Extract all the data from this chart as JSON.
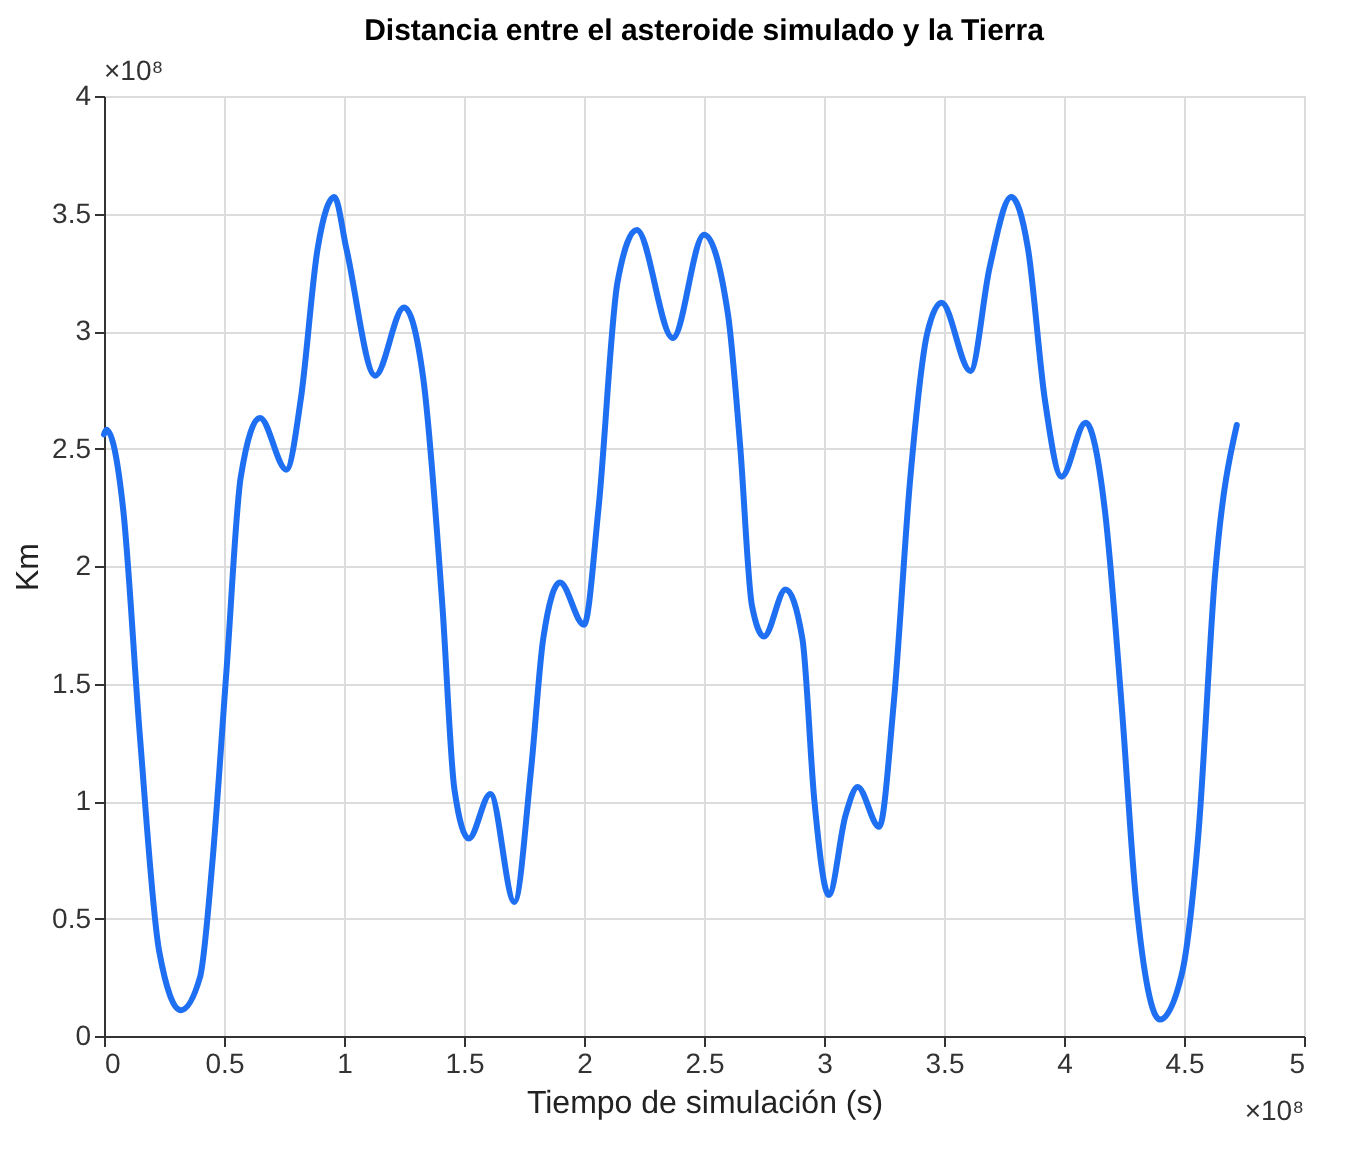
{
  "chart_data": {
    "type": "line",
    "title": "Distancia entre el asteroide simulado y la Tierra",
    "xlabel": "Tiempo de simulación (s)",
    "ylabel": "Km",
    "annotations": [
      "×10⁸",
      "×10⁸"
    ],
    "xlim": [
      0,
      5
    ],
    "xticks": [
      0,
      0.5,
      1,
      1.5,
      2,
      2.5,
      3,
      3.5,
      4,
      4.5,
      5
    ],
    "ylim": [
      0,
      4
    ],
    "yticks": [
      0,
      0.5,
      1,
      1.5,
      2,
      2.5,
      3,
      3.5,
      4
    ],
    "grid": true,
    "line_style": "solid",
    "marker": "none",
    "series": [
      {
        "color": "#1f6ff2",
        "x": [
          0,
          0.01,
          0.08,
          0.15,
          0.23,
          0.32,
          0.4,
          0.45,
          0.51,
          0.57,
          0.65,
          0.76,
          0.82,
          0.89,
          0.96,
          1.01,
          1.13,
          1.25,
          1.33,
          1.41,
          1.46,
          1.52,
          1.61,
          1.71,
          1.78,
          1.83,
          1.9,
          2.0,
          2.06,
          2.14,
          2.22,
          2.37,
          2.5,
          2.6,
          2.65,
          2.7,
          2.75,
          2.84,
          2.91,
          2.96,
          3.02,
          3.09,
          3.14,
          3.23,
          3.29,
          3.36,
          3.43,
          3.49,
          3.61,
          3.69,
          3.78,
          3.85,
          3.92,
          3.99,
          4.09,
          4.17,
          4.24,
          4.3,
          4.4,
          4.49,
          4.56,
          4.63,
          4.72
        ],
        "values": [
          2.56,
          2.58,
          2.24,
          1.27,
          0.36,
          0.11,
          0.25,
          0.72,
          1.55,
          2.38,
          2.63,
          2.41,
          2.71,
          3.35,
          3.57,
          3.35,
          2.81,
          3.1,
          2.8,
          1.83,
          1.05,
          0.84,
          1.03,
          0.57,
          1.14,
          1.69,
          1.93,
          1.75,
          2.24,
          3.21,
          3.43,
          2.97,
          3.41,
          3.07,
          2.52,
          1.83,
          1.7,
          1.9,
          1.69,
          1.0,
          0.6,
          0.94,
          1.06,
          0.89,
          1.41,
          2.38,
          2.99,
          3.12,
          2.83,
          3.27,
          3.57,
          3.35,
          2.71,
          2.38,
          2.61,
          2.24,
          1.41,
          0.58,
          0.07,
          0.26,
          0.86,
          1.97,
          2.6
        ]
      }
    ]
  }
}
